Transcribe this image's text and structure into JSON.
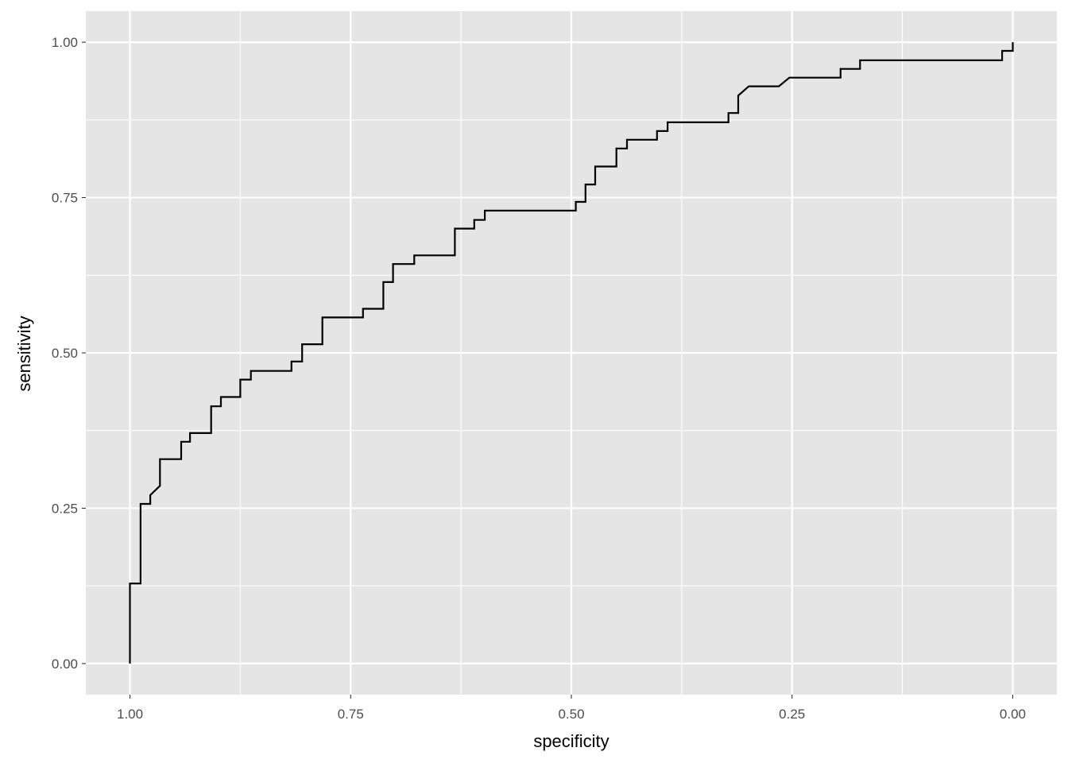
{
  "chart_data": {
    "type": "line",
    "title": "",
    "xlabel": "specificity",
    "ylabel": "sensitivity",
    "xlim": [
      1.05,
      -0.05
    ],
    "ylim": [
      -0.05,
      1.05
    ],
    "x_reversed": true,
    "grid": true,
    "legend": "none",
    "x_ticks": [
      1.0,
      0.75,
      0.5,
      0.25,
      0.0
    ],
    "x_tick_labels": [
      "1.00",
      "0.75",
      "0.50",
      "0.25",
      "0.00"
    ],
    "y_ticks": [
      0.0,
      0.25,
      0.5,
      0.75,
      1.0
    ],
    "y_tick_labels": [
      "0.00",
      "0.25",
      "0.50",
      "0.75",
      "1.00"
    ],
    "colors": {
      "panel": "#e5e5e5",
      "grid": "#ffffff",
      "line": "#000000"
    },
    "series": [
      {
        "points": [
          [
            1.0,
            0.0
          ],
          [
            1.0,
            0.129
          ],
          [
            0.988,
            0.129
          ],
          [
            0.988,
            0.257
          ],
          [
            0.977,
            0.257
          ],
          [
            0.977,
            0.271
          ],
          [
            0.966,
            0.286
          ],
          [
            0.966,
            0.329
          ],
          [
            0.942,
            0.329
          ],
          [
            0.942,
            0.357
          ],
          [
            0.932,
            0.357
          ],
          [
            0.932,
            0.371
          ],
          [
            0.908,
            0.371
          ],
          [
            0.908,
            0.414
          ],
          [
            0.897,
            0.414
          ],
          [
            0.897,
            0.429
          ],
          [
            0.875,
            0.429
          ],
          [
            0.875,
            0.457
          ],
          [
            0.863,
            0.457
          ],
          [
            0.863,
            0.471
          ],
          [
            0.817,
            0.471
          ],
          [
            0.817,
            0.486
          ],
          [
            0.805,
            0.486
          ],
          [
            0.805,
            0.514
          ],
          [
            0.782,
            0.514
          ],
          [
            0.782,
            0.557
          ],
          [
            0.736,
            0.557
          ],
          [
            0.736,
            0.571
          ],
          [
            0.713,
            0.571
          ],
          [
            0.713,
            0.614
          ],
          [
            0.702,
            0.614
          ],
          [
            0.702,
            0.643
          ],
          [
            0.678,
            0.643
          ],
          [
            0.678,
            0.657
          ],
          [
            0.632,
            0.657
          ],
          [
            0.632,
            0.7
          ],
          [
            0.61,
            0.7
          ],
          [
            0.61,
            0.714
          ],
          [
            0.598,
            0.714
          ],
          [
            0.598,
            0.729
          ],
          [
            0.495,
            0.729
          ],
          [
            0.495,
            0.743
          ],
          [
            0.484,
            0.743
          ],
          [
            0.484,
            0.771
          ],
          [
            0.473,
            0.771
          ],
          [
            0.473,
            0.8
          ],
          [
            0.449,
            0.8
          ],
          [
            0.449,
            0.829
          ],
          [
            0.437,
            0.829
          ],
          [
            0.437,
            0.843
          ],
          [
            0.403,
            0.843
          ],
          [
            0.403,
            0.857
          ],
          [
            0.391,
            0.857
          ],
          [
            0.391,
            0.871
          ],
          [
            0.322,
            0.871
          ],
          [
            0.322,
            0.886
          ],
          [
            0.311,
            0.886
          ],
          [
            0.311,
            0.914
          ],
          [
            0.299,
            0.929
          ],
          [
            0.265,
            0.929
          ],
          [
            0.253,
            0.943
          ],
          [
            0.195,
            0.943
          ],
          [
            0.195,
            0.957
          ],
          [
            0.173,
            0.957
          ],
          [
            0.173,
            0.971
          ],
          [
            0.012,
            0.971
          ],
          [
            0.012,
            0.986
          ],
          [
            0.0,
            0.986
          ],
          [
            0.0,
            1.0
          ]
        ]
      }
    ]
  }
}
